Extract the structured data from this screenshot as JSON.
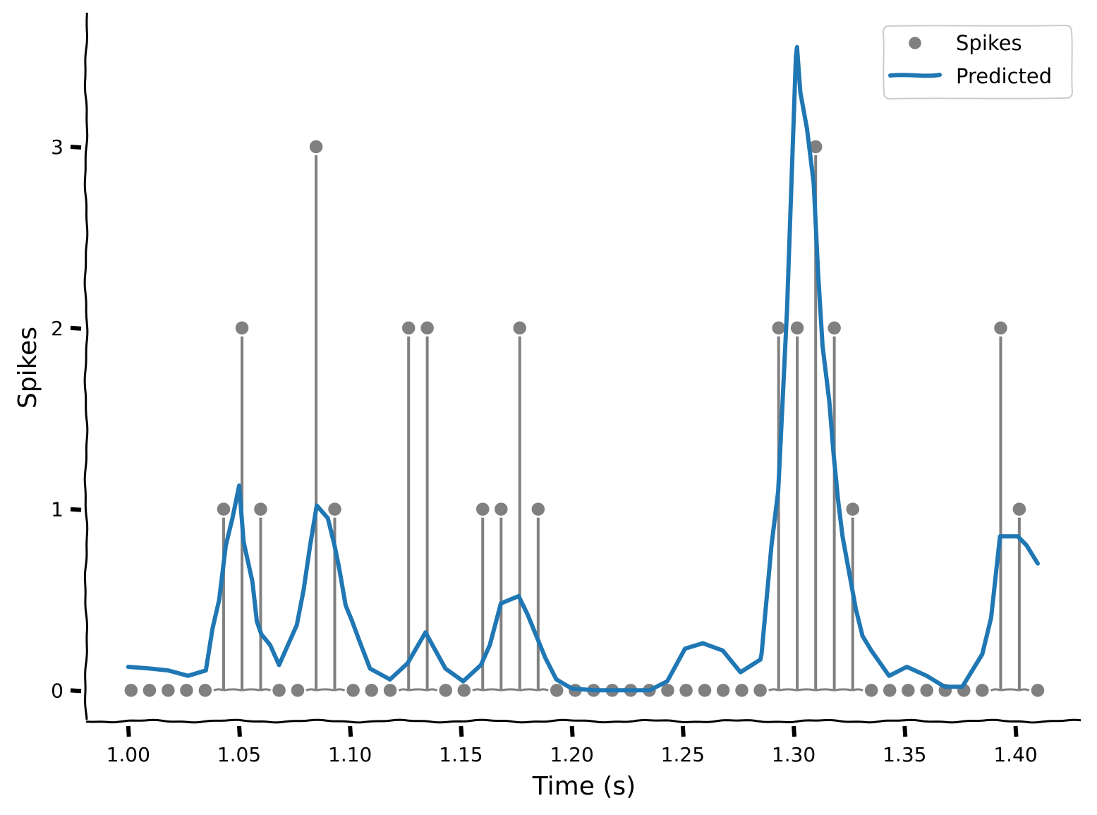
{
  "chart_data": {
    "type": "stem+line",
    "xlabel": "Time (s)",
    "ylabel": "Spikes",
    "xlim": [
      0.981,
      1.431
    ],
    "ylim": [
      -0.17,
      3.74
    ],
    "x_ticks": [
      "1.00",
      "1.05",
      "1.10",
      "1.15",
      "1.20",
      "1.25",
      "1.30",
      "1.35",
      "1.40"
    ],
    "y_ticks": [
      "0",
      "1",
      "2",
      "3"
    ],
    "legend": {
      "position": "top-right",
      "entries": [
        "Spikes",
        "Predicted"
      ]
    },
    "colors": {
      "spikes": "#808080",
      "predicted": "#1f77b4"
    },
    "spikes": {
      "name": "Spikes",
      "x": [
        1.0013,
        1.0096,
        1.018,
        1.0263,
        1.0347,
        1.043,
        1.0513,
        1.0597,
        1.068,
        1.0764,
        1.0847,
        1.0931,
        1.1014,
        1.1097,
        1.1181,
        1.1264,
        1.1348,
        1.1431,
        1.1514,
        1.1598,
        1.1681,
        1.1765,
        1.1848,
        1.1932,
        1.2015,
        1.2098,
        1.2182,
        1.2265,
        1.2349,
        1.2432,
        1.2515,
        1.2599,
        1.2682,
        1.2766,
        1.2849,
        1.2932,
        1.3016,
        1.3099,
        1.3183,
        1.3266,
        1.335,
        1.3433,
        1.3516,
        1.36,
        1.3683,
        1.3767,
        1.385,
        1.3933,
        1.4017,
        1.41
      ],
      "values": [
        0,
        0,
        0,
        0,
        0,
        1,
        2,
        1,
        0,
        0,
        3,
        1,
        0,
        0,
        0,
        2,
        2,
        0,
        0,
        1,
        1,
        2,
        1,
        0,
        0,
        0,
        0,
        0,
        0,
        0,
        0,
        0,
        0,
        0,
        0,
        2,
        2,
        3,
        2,
        1,
        0,
        0,
        0,
        0,
        0,
        0,
        0,
        2,
        1,
        0
      ]
    },
    "predicted": {
      "name": "Predicted",
      "x": [
        1.0,
        1.01,
        1.018,
        1.027,
        1.035,
        1.038,
        1.041,
        1.044,
        1.047,
        1.05,
        1.052,
        1.056,
        1.058,
        1.06,
        1.064,
        1.068,
        1.072,
        1.076,
        1.079,
        1.082,
        1.085,
        1.09,
        1.093,
        1.095,
        1.098,
        1.101,
        1.104,
        1.109,
        1.118,
        1.126,
        1.134,
        1.143,
        1.151,
        1.159,
        1.163,
        1.168,
        1.176,
        1.18,
        1.184,
        1.188,
        1.193,
        1.2,
        1.21,
        1.22,
        1.23,
        1.235,
        1.243,
        1.247,
        1.251,
        1.259,
        1.268,
        1.276,
        1.285,
        1.2855,
        1.287,
        1.29,
        1.293,
        1.295,
        1.297,
        1.299,
        1.301,
        1.3015,
        1.303,
        1.306,
        1.309,
        1.311,
        1.313,
        1.316,
        1.318,
        1.32,
        1.322,
        1.325,
        1.328,
        1.331,
        1.335,
        1.343,
        1.351,
        1.36,
        1.368,
        1.376,
        1.385,
        1.389,
        1.393,
        1.401,
        1.405,
        1.41
      ],
      "values": [
        0.13,
        0.12,
        0.11,
        0.08,
        0.11,
        0.34,
        0.5,
        0.8,
        0.95,
        1.13,
        0.82,
        0.6,
        0.38,
        0.31,
        0.25,
        0.14,
        0.25,
        0.36,
        0.55,
        0.8,
        1.02,
        0.95,
        0.8,
        0.68,
        0.47,
        0.38,
        0.28,
        0.12,
        0.06,
        0.15,
        0.32,
        0.12,
        0.05,
        0.14,
        0.25,
        0.48,
        0.52,
        0.42,
        0.3,
        0.18,
        0.06,
        0.01,
        0.0,
        0.0,
        0.0,
        0.0,
        0.05,
        0.14,
        0.23,
        0.26,
        0.22,
        0.1,
        0.17,
        0.2,
        0.4,
        0.8,
        1.1,
        1.6,
        2.1,
        2.8,
        3.5,
        3.55,
        3.3,
        3.1,
        2.8,
        2.3,
        1.9,
        1.6,
        1.3,
        1.05,
        0.85,
        0.65,
        0.45,
        0.3,
        0.22,
        0.08,
        0.13,
        0.08,
        0.02,
        0.02,
        0.2,
        0.4,
        0.85,
        0.85,
        0.8,
        0.7
      ]
    }
  }
}
